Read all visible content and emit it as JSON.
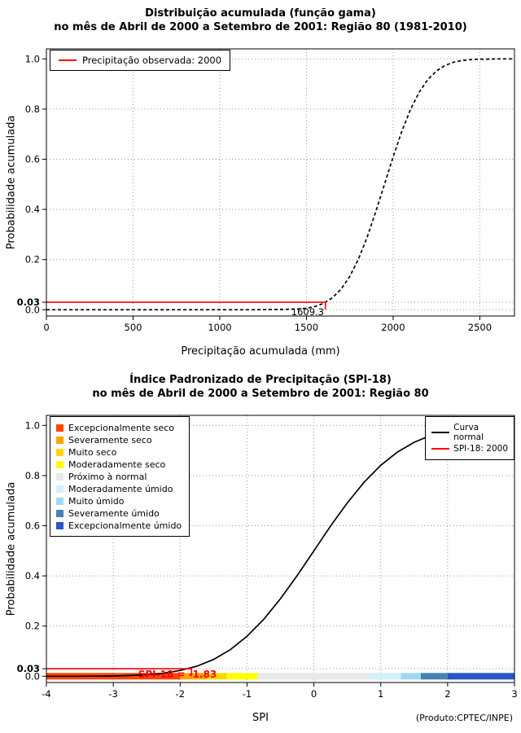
{
  "page": {
    "credit": "(Produto:CPTEC/INPE)"
  },
  "chart_data": [
    {
      "type": "line",
      "title": "Distribuição acumulada (função gama)",
      "subtitle": "no mês de Abril de 2000 a Setembro de 2001: Região 80 (1981-2010)",
      "xlabel": "Precipitação acumulada (mm)",
      "ylabel": "Probabilidade acumulada",
      "xlim": [
        0,
        2700
      ],
      "ylim": [
        -0.025,
        1.04
      ],
      "xticks": [
        0,
        500,
        1000,
        1500,
        2000,
        2500
      ],
      "xtick_labels": [
        "0",
        "500",
        "1000",
        "1500",
        "2000",
        "2500"
      ],
      "yticks": [
        0,
        0.03,
        0.2,
        0.4,
        0.6,
        0.8,
        1
      ],
      "ytick_labels": [
        "0.0",
        "0.03",
        "0.2",
        "0.4",
        "0.6",
        "0.8",
        "1.0"
      ],
      "grid": true,
      "legend_position": "top-left",
      "legend": [
        {
          "label": "Precipitação observada: 2000",
          "color": "#ff0000"
        }
      ],
      "annotation": {
        "x": 1609.3,
        "y": 0.03,
        "label": "1609.3",
        "color": "#ff0000",
        "label_color": "#000000"
      },
      "series": [
        {
          "name": "Distribuição gama acumulada",
          "color": "#000000",
          "dash": "4,3",
          "x": [
            0,
            200,
            400,
            600,
            800,
            1000,
            1100,
            1200,
            1300,
            1350,
            1400,
            1450,
            1500,
            1550,
            1600,
            1650,
            1700,
            1750,
            1800,
            1850,
            1900,
            1950,
            2000,
            2050,
            2100,
            2150,
            2200,
            2250,
            2300,
            2350,
            2400,
            2450,
            2500,
            2550,
            2600,
            2700
          ],
          "y": [
            0,
            0,
            0,
            0,
            0,
            0,
            0,
            0,
            0.001,
            0.001,
            0.002,
            0.003,
            0.006,
            0.013,
            0.026,
            0.048,
            0.082,
            0.133,
            0.202,
            0.289,
            0.391,
            0.5,
            0.609,
            0.711,
            0.798,
            0.867,
            0.918,
            0.952,
            0.974,
            0.987,
            0.994,
            0.997,
            0.999,
            0.999,
            1,
            1
          ]
        }
      ]
    },
    {
      "type": "line",
      "title": "Índice Padronizado de Precipitação (SPI-18)",
      "subtitle": "no mês de Abril de 2000 a Setembro de 2001: Região 80",
      "xlabel": "SPI",
      "ylabel": "Probabilidade acumulada",
      "xlim": [
        -4,
        3
      ],
      "ylim": [
        -0.025,
        1.04
      ],
      "xticks": [
        -4,
        -3,
        -2,
        -1,
        0,
        1,
        2,
        3
      ],
      "xtick_labels": [
        "-4",
        "-3",
        "-2",
        "-1",
        "0",
        "1",
        "2",
        "3"
      ],
      "yticks": [
        0,
        0.03,
        0.2,
        0.4,
        0.6,
        0.8,
        1
      ],
      "ytick_labels": [
        "0.0",
        "0.03",
        "0.2",
        "0.4",
        "0.6",
        "0.8",
        "1.0"
      ],
      "grid": true,
      "legend_right": [
        {
          "label": "Curva normal",
          "color": "#000000"
        },
        {
          "label": "SPI-18: 2000",
          "color": "#ff0000"
        }
      ],
      "annotation": {
        "x": -1.83,
        "y": 0.03,
        "label": "SPI-18 = -1.83",
        "color": "#ff0000",
        "label_color": "#ff0000"
      },
      "categories": [
        {
          "label": "Excepcionalmente seco",
          "color": "#ff4500",
          "from": -4,
          "to": -2
        },
        {
          "label": "Severamente seco",
          "color": "#ffa500",
          "from": -2,
          "to": -1.6
        },
        {
          "label": "Muito seco",
          "color": "#ffd700",
          "from": -1.6,
          "to": -1.3
        },
        {
          "label": "Moderadamente seco",
          "color": "#ffff00",
          "from": -1.3,
          "to": -0.84
        },
        {
          "label": "Próximo à normal",
          "color": "#e8e8e8",
          "from": -0.84,
          "to": 0.84
        },
        {
          "label": "Moderadamente úmido",
          "color": "#d2f0fa",
          "from": 0.84,
          "to": 1.3
        },
        {
          "label": "Muito úmido",
          "color": "#a0d8ef",
          "from": 1.3,
          "to": 1.6
        },
        {
          "label": "Severamente úmido",
          "color": "#4682b4",
          "from": 1.6,
          "to": 2
        },
        {
          "label": "Excepcionalmente úmido",
          "color": "#2855c8",
          "from": 2,
          "to": 3
        }
      ],
      "series": [
        {
          "name": "Curva normal",
          "color": "#000000",
          "x": [
            -4,
            -3.5,
            -3,
            -2.75,
            -2.5,
            -2.25,
            -2,
            -1.75,
            -1.5,
            -1.25,
            -1,
            -0.75,
            -0.5,
            -0.25,
            0,
            0.25,
            0.5,
            0.75,
            1,
            1.25,
            1.5,
            1.75,
            2,
            2.25,
            2.5,
            2.75,
            3
          ],
          "y": [
            0,
            0,
            0.001,
            0.003,
            0.006,
            0.012,
            0.023,
            0.04,
            0.067,
            0.106,
            0.159,
            0.227,
            0.309,
            0.401,
            0.5,
            0.599,
            0.691,
            0.773,
            0.841,
            0.894,
            0.933,
            0.96,
            0.977,
            0.988,
            0.994,
            0.997,
            0.999
          ]
        }
      ]
    }
  ]
}
